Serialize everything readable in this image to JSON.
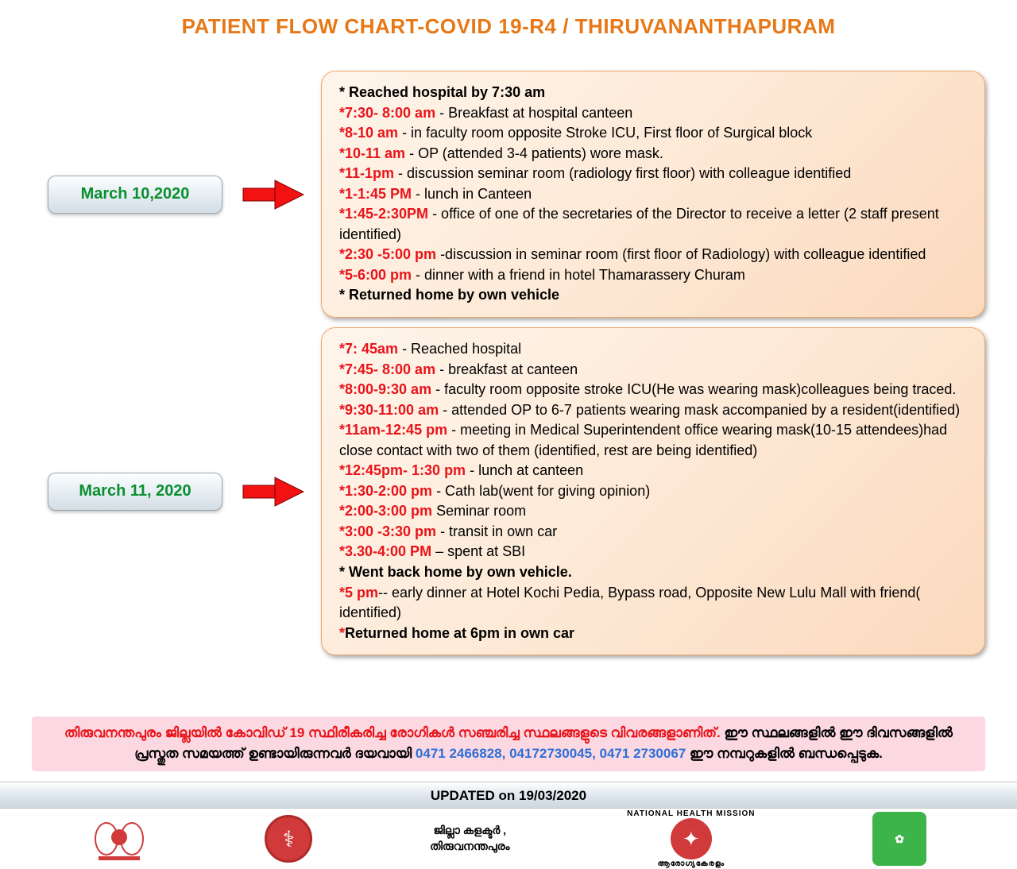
{
  "title": "PATIENT FLOW CHART-COVID 19-R4 / THIRUVANANTHAPURAM",
  "colors": {
    "title": "#e77817",
    "date_text": "#0a8f2e",
    "time_text": "#e8141a",
    "arrow": "#f31212",
    "card_bg_start": "#fef5eb",
    "card_bg_end": "#fbd9bd",
    "card_border": "#f0a86a",
    "notice_bg": "#fcd9e2",
    "phone_text": "#2e6fd6"
  },
  "days": [
    {
      "date": "March 10,2020",
      "items": [
        {
          "time": "*",
          "text": "  Reached hospital by 7:30 am",
          "plain_star": true
        },
        {
          "time": "*7:30- 8:00 am",
          "text": "  -  Breakfast at hospital canteen"
        },
        {
          "time": "*8-10 am",
          "text": " - in faculty room opposite Stroke ICU, First floor of Surgical block"
        },
        {
          "time": "*10-11 am",
          "text": " - OP (attended 3-4 patients) wore mask."
        },
        {
          "time": "*11-1pm",
          "text": " - discussion seminar room (radiology first floor) with colleague identified"
        },
        {
          "time": "*1-1:45 PM",
          "text": " - lunch in Canteen"
        },
        {
          "time": "*1:45-2:30PM",
          "text": " - office of one of the secretaries of the Director to receive a letter (2 staff present identified)"
        },
        {
          "time": "*2:30 -5:00 pm",
          "text": " -discussion in seminar room (first floor of Radiology) with colleague identified"
        },
        {
          "time": "*5-6:00 pm",
          "text": " - dinner with a friend in hotel Thamarassery Churam"
        },
        {
          "time": "*",
          "text": "  Returned home by own vehicle",
          "plain_star": true
        }
      ]
    },
    {
      "date": "March 11, 2020",
      "items": [
        {
          "time": "*7: 45am",
          "text": " - Reached hospital"
        },
        {
          "time": "*7:45- 8:00 am",
          "text": " - breakfast at canteen"
        },
        {
          "time": "*8:00-9:30 am",
          "text": " - faculty room opposite stroke ICU(He was wearing mask)colleagues being traced."
        },
        {
          "time": "*9:30-11:00 am",
          "text": " - attended OP to 6-7 patients wearing mask accompanied by a resident(identified)"
        },
        {
          "time": "*11am-12:45 pm",
          "text": " - meeting in Medical Superintendent office wearing mask(10-15 attendees)had close contact with two of them (identified, rest are being identified)"
        },
        {
          "time": "*12:45pm- 1:30 pm",
          "text": "  - lunch at canteen"
        },
        {
          "time": "*1:30-2:00 pm",
          "text": " -  Cath lab(went for giving opinion)"
        },
        {
          "time": "*2:00-3:00 pm",
          "text": "   Seminar room"
        },
        {
          "time": "*3:00 -3:30 pm",
          "text": " -  transit in own car"
        },
        {
          "time": "*3.30-4:00 PM",
          "text": " – spent at SBI"
        },
        {
          "time": "*",
          "text": " Went back home by own vehicle.",
          "plain_star": true
        },
        {
          "time": "*5 pm",
          "text": "-- early dinner at Hotel Kochi Pedia, Bypass road, Opposite New Lulu Mall with friend( identified)"
        },
        {
          "time": "*",
          "text": "Returned home at  6pm in own car",
          "red_prefix_only": true
        }
      ]
    }
  ],
  "notice": {
    "line1_red": "തിരുവനന്തപുരം ജില്ലയിൽ കോവിഡ് 19 സ്ഥിരീകരിച്ച രോഗികൾ സഞ്ചരിച്ച സ്ഥലങ്ങളുടെ വിവരങ്ങളാണിത്.",
    "line1_black": " ഈ സ്ഥലങ്ങളിൽ ഈ ദിവസങ്ങളിൽ പ്രസ്തുത സമയത്ത് ഉണ്ടായിരുന്നവർ ദയവായി  ",
    "phones": "0471 2466828, 04172730045, 0471 2730067",
    "line2_black": "   ഈ നമ്പറുകളിൽ ബന്ധപ്പെടുക."
  },
  "updated": "UPDATED on 19/03/2020",
  "footer": {
    "collector_line1": "ജില്ലാ കളക്ടർ ,",
    "collector_line2": "തിരുവനന്തപുരം",
    "nhm_top": "NATIONAL HEALTH",
    "nhm_side": "MISSION",
    "nhm_bottom": "ആരോഗ്യകേരളം"
  }
}
